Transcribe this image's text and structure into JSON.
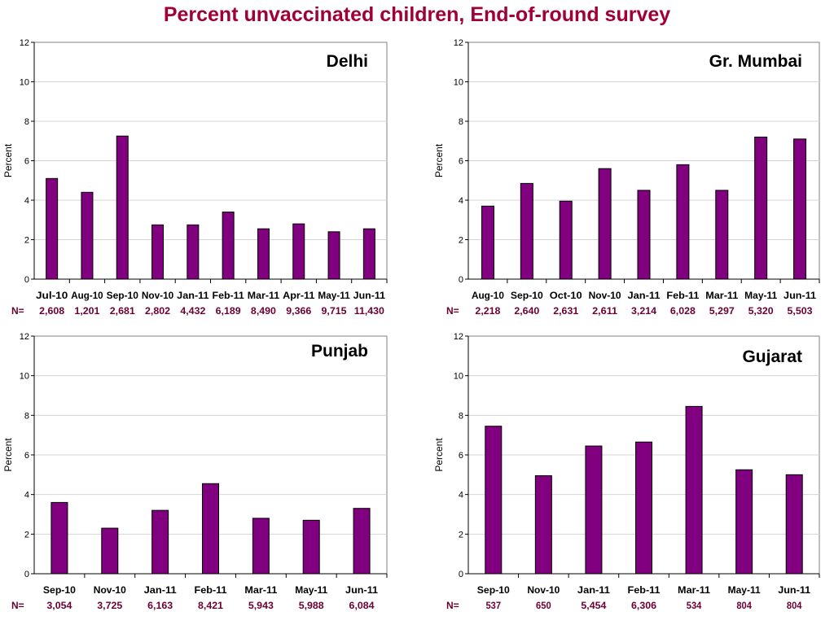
{
  "page": {
    "title": "Percent unvaccinated children, End-of-round survey"
  },
  "colors": {
    "bar": "#800080",
    "title": "#a00033",
    "n_values": "#6b0033",
    "grid": "#d4d4d4"
  },
  "chart_data": [
    {
      "type": "bar",
      "title": "Delhi",
      "ylabel": "Percent",
      "ylim": [
        0,
        12
      ],
      "yticks": [
        "0",
        "2",
        "4",
        "6",
        "8",
        "10",
        "12"
      ],
      "grid": true,
      "n_label": "N=",
      "categories": [
        "Jul-10",
        "Aug-10",
        "Sep-10",
        "Nov-10",
        "Jan-11",
        "Feb-11",
        "Mar-11",
        "Apr-11",
        "May-11",
        "Jun-11"
      ],
      "values": [
        5.1,
        4.4,
        7.25,
        2.75,
        2.75,
        3.4,
        2.55,
        2.8,
        2.4,
        2.55
      ],
      "n_values": [
        "2,608",
        "1,201",
        "2,681",
        "2,802",
        "4,432",
        "6,189",
        "8,490",
        "9,366",
        "9,715",
        "11,430"
      ]
    },
    {
      "type": "bar",
      "title": "Gr. Mumbai",
      "ylabel": "Percent",
      "ylim": [
        0,
        12
      ],
      "yticks": [
        "0",
        "2",
        "4",
        "6",
        "8",
        "10",
        "12"
      ],
      "grid": true,
      "n_label": "N=",
      "categories": [
        "Aug-10",
        "Sep-10",
        "Oct-10",
        "Nov-10",
        "Jan-11",
        "Feb-11",
        "Mar-11",
        "May-11",
        "Jun-11"
      ],
      "values": [
        3.7,
        4.85,
        3.95,
        5.6,
        4.5,
        5.8,
        4.5,
        7.2,
        7.1
      ],
      "n_values": [
        "2,218",
        "2,640",
        "2,631",
        "2,611",
        "3,214",
        "6,028",
        "5,297",
        "5,320",
        "5,503"
      ]
    },
    {
      "type": "bar",
      "title": "Punjab",
      "ylabel": "Percent",
      "ylim": [
        0,
        12
      ],
      "yticks": [
        "0",
        "2",
        "4",
        "6",
        "8",
        "10",
        "12"
      ],
      "grid": true,
      "n_label": "N=",
      "categories": [
        "Sep-10",
        "Nov-10",
        "Jan-11",
        "Feb-11",
        "Mar-11",
        "May-11",
        "Jun-11"
      ],
      "values": [
        3.6,
        2.3,
        3.2,
        4.55,
        2.8,
        2.7,
        3.3
      ],
      "n_values": [
        "3,054",
        "3,725",
        "6,163",
        "8,421",
        "5,943",
        "5,988",
        "6,084"
      ]
    },
    {
      "type": "bar",
      "title": "Gujarat",
      "ylabel": "Percent",
      "ylim": [
        0,
        12
      ],
      "yticks": [
        "0",
        "2",
        "4",
        "6",
        "8",
        "10",
        "12"
      ],
      "grid": true,
      "n_label": "N=",
      "categories": [
        "Sep-10",
        "Nov-10",
        "Jan-11",
        "Feb-11",
        "Mar-11",
        "May-11",
        "Jun-11"
      ],
      "values": [
        7.45,
        4.95,
        6.45,
        6.65,
        8.45,
        5.25,
        5.0
      ],
      "n_values": [
        "537",
        "650",
        "5,454",
        "6,306",
        "534",
        "804",
        "804"
      ]
    }
  ]
}
